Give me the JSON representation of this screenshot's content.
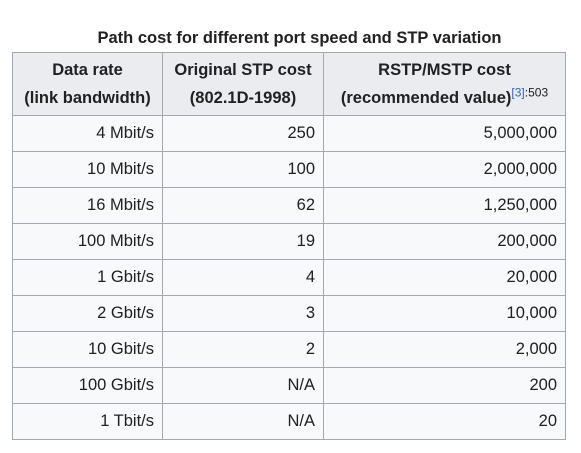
{
  "caption": "Path cost for different port speed and STP variation",
  "headers": {
    "col1_line1": "Data rate",
    "col1_line2": "(link bandwidth)",
    "col2_line1": "Original STP cost",
    "col2_line2": "(802.1D-1998)",
    "col3_line1": "RSTP/MSTP cost",
    "col3_line2": "(recommended value)",
    "col3_ref": "[3]",
    "col3_ref_page": ":503"
  },
  "rows": [
    {
      "rate": "4 Mbit/s",
      "stp": "250",
      "rstp": "5,000,000"
    },
    {
      "rate": "10 Mbit/s",
      "stp": "100",
      "rstp": "2,000,000"
    },
    {
      "rate": "16 Mbit/s",
      "stp": "62",
      "rstp": "1,250,000"
    },
    {
      "rate": "100 Mbit/s",
      "stp": "19",
      "rstp": "200,000"
    },
    {
      "rate": "1 Gbit/s",
      "stp": "4",
      "rstp": "20,000"
    },
    {
      "rate": "2 Gbit/s",
      "stp": "3",
      "rstp": "10,000"
    },
    {
      "rate": "10 Gbit/s",
      "stp": "2",
      "rstp": "2,000"
    },
    {
      "rate": "100 Gbit/s",
      "stp": "N/A",
      "rstp": "200"
    },
    {
      "rate": "1 Tbit/s",
      "stp": "N/A",
      "rstp": "20"
    }
  ]
}
